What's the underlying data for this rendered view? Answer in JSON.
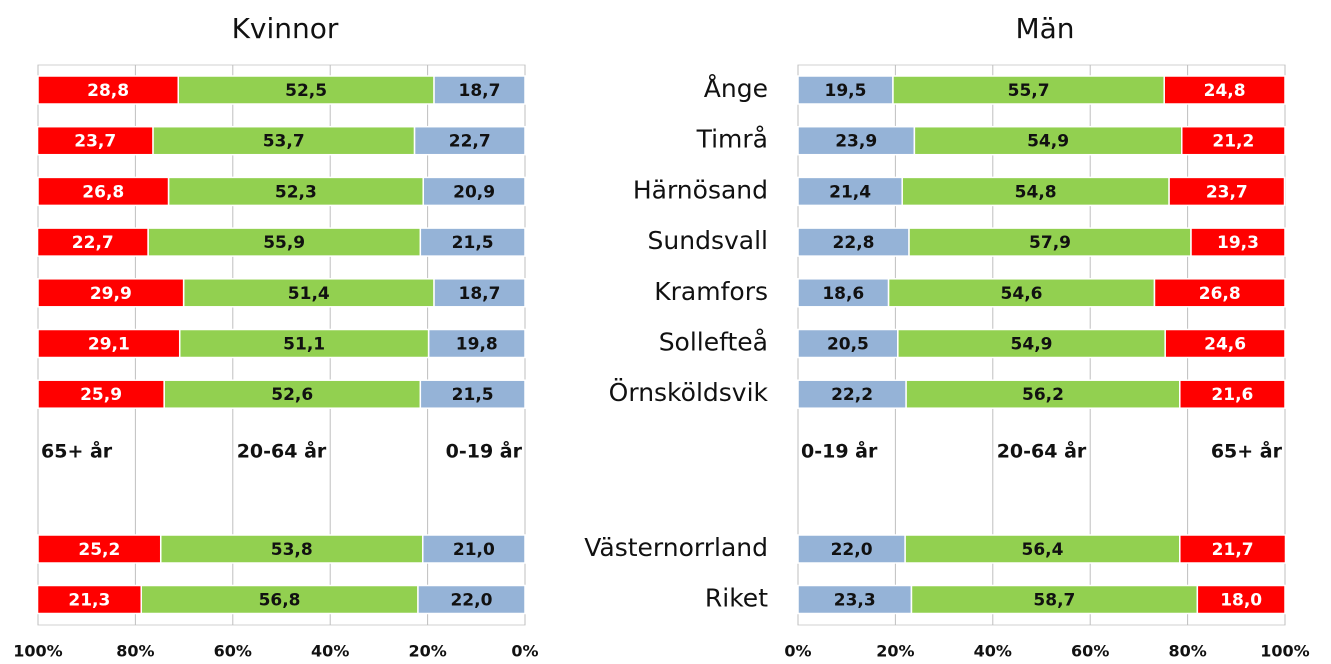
{
  "chart_data": [
    {
      "type": "bar",
      "orientation": "horizontal",
      "stacked": true,
      "title": "Kvinnor",
      "xlim": [
        100,
        0
      ],
      "xticks": [
        {
          "value": 100,
          "label": "100%"
        },
        {
          "value": 80,
          "label": "80%"
        },
        {
          "value": 60,
          "label": "60%"
        },
        {
          "value": 40,
          "label": "40%"
        },
        {
          "value": 20,
          "label": "20%"
        },
        {
          "value": 0,
          "label": "0%"
        }
      ],
      "grid": true,
      "series": [
        {
          "name": "0-19 år",
          "color": "#95b3d7",
          "values": [
            18.7,
            22.7,
            20.9,
            21.5,
            18.7,
            19.8,
            21.5,
            21.0,
            22.0
          ],
          "value_labels": [
            "18,7",
            "22,7",
            "20,9",
            "21,5",
            "18,7",
            "19,8",
            "21,5",
            "21,0",
            "22,0"
          ]
        },
        {
          "name": "20-64 år",
          "color": "#92d050",
          "values": [
            52.5,
            53.7,
            52.3,
            55.9,
            51.4,
            51.1,
            52.6,
            53.8,
            56.8
          ],
          "value_labels": [
            "52,5",
            "53,7",
            "52,3",
            "55,9",
            "51,4",
            "51,1",
            "52,6",
            "53,8",
            "56,8"
          ]
        },
        {
          "name": "65+ år",
          "color": "#ff0000",
          "values": [
            28.8,
            23.7,
            26.8,
            22.7,
            29.9,
            29.1,
            25.9,
            25.2,
            21.3
          ],
          "value_labels": [
            "28,8",
            "23,7",
            "26,8",
            "22,7",
            "29,9",
            "29,1",
            "25,9",
            "25,2",
            "21,3"
          ]
        }
      ]
    },
    {
      "type": "bar",
      "orientation": "horizontal",
      "stacked": true,
      "title": "Män",
      "categories": [
        "Ånge",
        "Timrå",
        "Härnösand",
        "Sundsvall",
        "Kramfors",
        "Sollefteå",
        "Örnsköldsvik",
        "Västernorrland",
        "Riket"
      ],
      "xlim": [
        0,
        100
      ],
      "xticks": [
        {
          "value": 0,
          "label": "0%"
        },
        {
          "value": 20,
          "label": "20%"
        },
        {
          "value": 40,
          "label": "40%"
        },
        {
          "value": 60,
          "label": "60%"
        },
        {
          "value": 80,
          "label": "80%"
        },
        {
          "value": 100,
          "label": "100%"
        }
      ],
      "grid": true,
      "series": [
        {
          "name": "0-19 år",
          "color": "#95b3d7",
          "values": [
            19.5,
            23.9,
            21.4,
            22.8,
            18.6,
            20.5,
            22.2,
            22.0,
            23.3
          ],
          "value_labels": [
            "19,5",
            "23,9",
            "21,4",
            "22,8",
            "18,6",
            "20,5",
            "22,2",
            "22,0",
            "23,3"
          ]
        },
        {
          "name": "20-64 år",
          "color": "#92d050",
          "values": [
            55.7,
            54.9,
            54.8,
            57.9,
            54.6,
            54.9,
            56.2,
            56.4,
            58.7
          ],
          "value_labels": [
            "55,7",
            "54,9",
            "54,8",
            "57,9",
            "54,6",
            "54,9",
            "56,2",
            "56,4",
            "58,7"
          ]
        },
        {
          "name": "65+ år",
          "color": "#ff0000",
          "values": [
            24.8,
            21.2,
            23.7,
            19.3,
            26.8,
            24.6,
            21.6,
            21.7,
            18.0
          ],
          "value_labels": [
            "24,8",
            "21,2",
            "23,7",
            "19,3",
            "26,8",
            "24,6",
            "21,6",
            "21,7",
            "18,0"
          ]
        }
      ]
    }
  ]
}
